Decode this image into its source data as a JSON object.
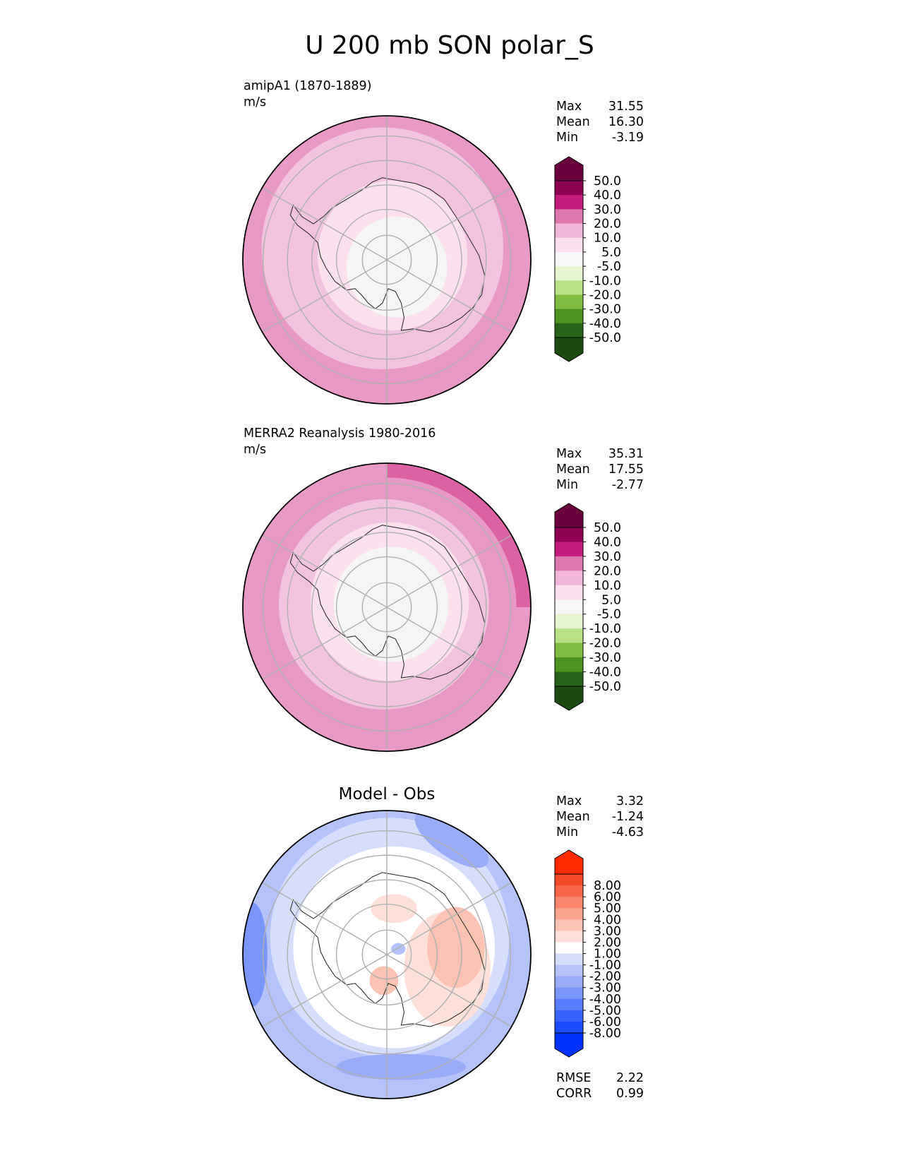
{
  "chart_data": {
    "type": "polar-contour-panels",
    "title": "U 200 mb SON polar_S",
    "panels": [
      {
        "id": "test",
        "title_left": "amipA1 (1870-1889)",
        "units": "m/s",
        "title_center": "",
        "stats": [
          {
            "label": "Max",
            "value": "31.55"
          },
          {
            "label": "Mean",
            "value": "16.30"
          },
          {
            "label": "Min",
            "value": "-3.19"
          }
        ],
        "metrics": [],
        "colorbar": {
          "levels": [
            "-50.0",
            "-40.0",
            "-30.0",
            "-20.0",
            "-10.0",
            "-5.0",
            "5.0",
            "10.0",
            "20.0",
            "30.0",
            "40.0",
            "50.0"
          ],
          "colors": [
            "#276419",
            "#4d9221",
            "#7fbc41",
            "#b8e186",
            "#e6f5d0",
            "#f7f7f7",
            "#fde0ef",
            "#f1b6da",
            "#de77ae",
            "#c51b7d",
            "#8e0152"
          ],
          "under_color": "#1b4b12",
          "over_color": "#6a013d",
          "extend": "both"
        },
        "field": {
          "rings_pct": [
            {
              "r": 1.0,
              "cx": 0.0,
              "cy": 0.0,
              "color": "#e899c6"
            },
            {
              "r": 0.84,
              "cx": -0.03,
              "cy": -0.08,
              "color": "#f2c3de"
            },
            {
              "r": 0.52,
              "cx": 0.04,
              "cy": -0.03,
              "color": "#fbe1ee"
            },
            {
              "r": 0.35,
              "cx": 0.07,
              "cy": 0.05,
              "color": "#f5f5f3"
            }
          ]
        }
      },
      {
        "id": "reference",
        "title_left": "MERRA2 Reanalysis 1980-2016",
        "units": "m/s",
        "title_center": "",
        "stats": [
          {
            "label": "Max",
            "value": "35.31"
          },
          {
            "label": "Mean",
            "value": "17.55"
          },
          {
            "label": "Min",
            "value": "-2.77"
          }
        ],
        "metrics": [],
        "colorbar": {
          "levels": [
            "-50.0",
            "-40.0",
            "-30.0",
            "-20.0",
            "-10.0",
            "-5.0",
            "5.0",
            "10.0",
            "20.0",
            "30.0",
            "40.0",
            "50.0"
          ],
          "colors": [
            "#276419",
            "#4d9221",
            "#7fbc41",
            "#b8e186",
            "#e6f5d0",
            "#f7f7f7",
            "#fde0ef",
            "#f1b6da",
            "#de77ae",
            "#c51b7d",
            "#8e0152"
          ],
          "under_color": "#1b4b12",
          "over_color": "#6a013d",
          "extend": "both"
        },
        "field": {
          "rings_pct": [
            {
              "r": 1.0,
              "cx": 0.0,
              "cy": 0.0,
              "color": "#e899c6"
            },
            {
              "r": 0.73,
              "cx": -0.02,
              "cy": -0.02,
              "color": "#f2c3de"
            },
            {
              "r": 0.55,
              "cx": 0.02,
              "cy": -0.04,
              "color": "#fbe1ee"
            },
            {
              "r": 0.4,
              "cx": 0.03,
              "cy": -0.02,
              "color": "#f5f5f3"
            }
          ],
          "edge_sector": {
            "from_deg": 0,
            "to_deg": 90,
            "color": "#dc62a4",
            "rmin": 0.9
          }
        }
      },
      {
        "id": "diff",
        "title_left": "",
        "units": "",
        "title_center": "Model - Obs",
        "stats": [
          {
            "label": "Max",
            "value": "3.32"
          },
          {
            "label": "Mean",
            "value": "-1.24"
          },
          {
            "label": "Min",
            "value": "-4.63"
          }
        ],
        "metrics": [
          {
            "label": "RMSE",
            "value": "2.22"
          },
          {
            "label": "CORR",
            "value": "0.99"
          }
        ],
        "colorbar": {
          "levels": [
            "-8.00",
            "-6.00",
            "-5.00",
            "-4.00",
            "-3.00",
            "-2.00",
            "-1.00",
            "1.00",
            "2.00",
            "3.00",
            "4.00",
            "5.00",
            "6.00",
            "8.00"
          ],
          "colors": [
            "#1a4cff",
            "#3a62ff",
            "#5a7cff",
            "#7a96fb",
            "#9aacf8",
            "#b5c3fa",
            "#d6defb",
            "#ffffff",
            "#fde0da",
            "#fcc3b4",
            "#fba590",
            "#fa866d",
            "#f9674a",
            "#f44a2a"
          ],
          "under_color": "#0033ff",
          "over_color": "#ff2a00",
          "extend": "both"
        },
        "field": {
          "rings_pct": [
            {
              "r": 1.0,
              "cx": 0.0,
              "cy": 0.0,
              "color": "#b5c3fa"
            },
            {
              "r": 0.83,
              "cx": 0.02,
              "cy": -0.12,
              "color": "#d6defb"
            },
            {
              "r": 0.7,
              "cx": 0.05,
              "cy": -0.05,
              "color": "#ffffff"
            }
          ],
          "blobs": [
            {
              "x": -0.93,
              "y": 0.0,
              "rx": 0.1,
              "ry": 0.36,
              "color": "#7a96fb"
            },
            {
              "x": 0.45,
              "y": -0.8,
              "rx": 0.3,
              "ry": 0.12,
              "rot": 35,
              "color": "#9aacf8"
            },
            {
              "x": 0.1,
              "y": 0.78,
              "rx": 0.45,
              "ry": 0.09,
              "color": "#9aacf8"
            },
            {
              "x": 0.42,
              "y": 0.1,
              "rx": 0.3,
              "ry": 0.4,
              "color": "#fde0da"
            },
            {
              "x": 0.48,
              "y": -0.05,
              "rx": 0.2,
              "ry": 0.28,
              "color": "#fcc3b4"
            },
            {
              "x": 0.05,
              "y": -0.32,
              "rx": 0.16,
              "ry": 0.1,
              "color": "#fde0da"
            },
            {
              "x": -0.02,
              "y": 0.18,
              "rx": 0.1,
              "ry": 0.1,
              "color": "#fcc3b4"
            },
            {
              "x": 0.08,
              "y": -0.04,
              "rx": 0.05,
              "ry": 0.04,
              "color": "#b5c3fa"
            }
          ]
        }
      }
    ]
  }
}
